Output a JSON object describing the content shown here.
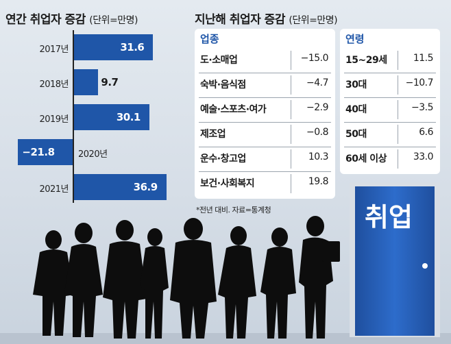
{
  "left_chart": {
    "title": "연간 취업자 증감",
    "unit": "(단위=만명)"
  },
  "right_panel": {
    "title": "지난해 취업자 증감",
    "unit": "(단위=만명)",
    "industry_header": "업종",
    "age_header": "연령",
    "note": "*전년 대비. 자료=통계청"
  },
  "door": {
    "sign": "취업"
  },
  "colors": {
    "bar": "#1f56a8",
    "accent": "#1f56a8",
    "door": "#2d6ccb"
  },
  "chart_data": [
    {
      "type": "bar",
      "orientation": "horizontal",
      "title": "연간 취업자 증감",
      "unit": "(단위=만명)",
      "categories": [
        "2017년",
        "2018년",
        "2019년",
        "2020년",
        "2021년"
      ],
      "values": [
        31.6,
        9.7,
        30.1,
        -21.8,
        36.9
      ],
      "value_labels": [
        "31.6",
        "9.7",
        "30.1",
        "−21.8",
        "36.9"
      ]
    },
    {
      "type": "table",
      "title": "지난해 취업자 증감",
      "header": "업종",
      "rows": [
        {
          "label": "도·소매업",
          "value": -15.0,
          "value_label": "−15.0"
        },
        {
          "label": "숙박·음식점",
          "value": -4.7,
          "value_label": "−4.7"
        },
        {
          "label": "예술·스포츠·여가",
          "value": -2.9,
          "value_label": "−2.9"
        },
        {
          "label": "제조업",
          "value": -0.8,
          "value_label": "−0.8"
        },
        {
          "label": "운수·창고업",
          "value": 10.3,
          "value_label": "10.3"
        },
        {
          "label": "보건·사회복지",
          "value": 19.8,
          "value_label": "19.8"
        }
      ]
    },
    {
      "type": "table",
      "title": "지난해 취업자 증감",
      "header": "연령",
      "rows": [
        {
          "label": "15~29세",
          "value": 11.5,
          "value_label": "11.5"
        },
        {
          "label": "30대",
          "value": -10.7,
          "value_label": "−10.7"
        },
        {
          "label": "40대",
          "value": -3.5,
          "value_label": "−3.5"
        },
        {
          "label": "50대",
          "value": 6.6,
          "value_label": "6.6"
        },
        {
          "label": "60세 이상",
          "value": 33.0,
          "value_label": "33.0"
        }
      ]
    }
  ]
}
